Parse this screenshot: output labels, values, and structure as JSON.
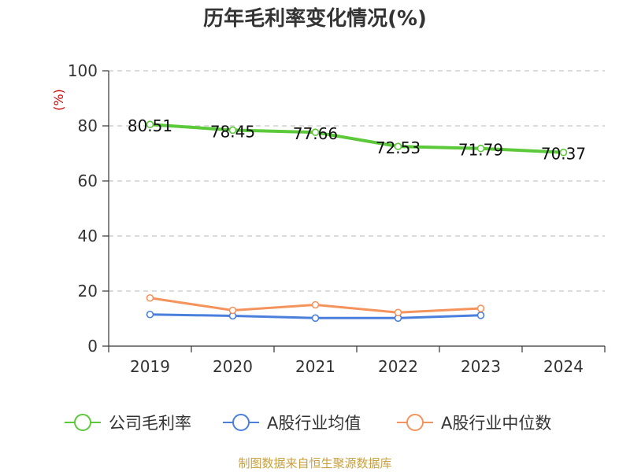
{
  "chart_data": {
    "type": "line",
    "title": "历年毛利率变化情况(%)",
    "ylabel": "(%)",
    "xlabel": "",
    "categories": [
      "2019",
      "2020",
      "2021",
      "2022",
      "2023",
      "2024"
    ],
    "ylim": [
      0,
      100
    ],
    "yticks": [
      "0",
      "20",
      "40",
      "60",
      "80",
      "100"
    ],
    "grid": true,
    "legend_position": "bottom",
    "series": [
      {
        "name": "公司毛利率",
        "color": "#5cc93a",
        "values": [
          80.51,
          78.45,
          77.66,
          72.53,
          71.79,
          70.37
        ],
        "labels": [
          "80.51",
          "78.45",
          "77.66",
          "72.53",
          "71.79",
          "70.37"
        ]
      },
      {
        "name": "A股行业均值",
        "color": "#4a7fdc",
        "values": [
          11.5,
          11.0,
          10.2,
          10.2,
          11.2,
          null
        ]
      },
      {
        "name": "A股行业中位数",
        "color": "#f5935c",
        "values": [
          17.5,
          13.0,
          15.0,
          12.2,
          13.7,
          null
        ]
      }
    ]
  },
  "source": "制图数据来自恒生聚源数据库"
}
